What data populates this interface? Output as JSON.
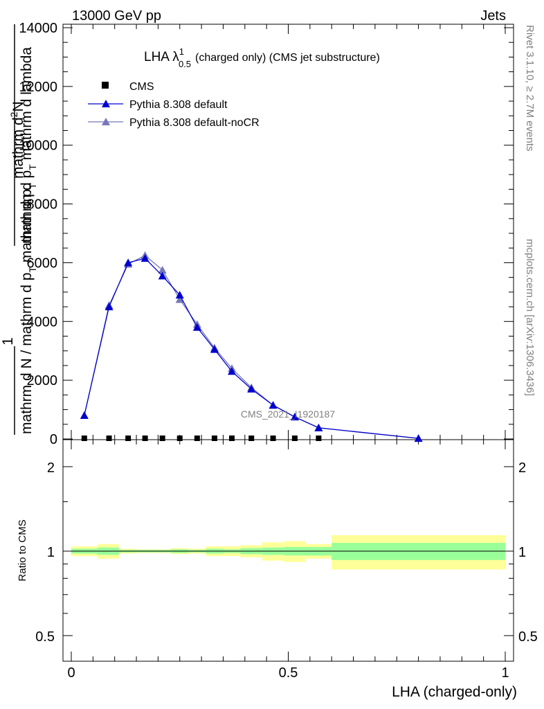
{
  "header": {
    "left": "13000 GeV pp",
    "right": "Jets"
  },
  "title_main": "LHA λ",
  "title_sup": "1",
  "title_sub": "0.5",
  "title_rest": "(charged only) (CMS jet substructure)",
  "side_labels": {
    "rivet": "Rivet 3.1.10, ≥ 2.7M events",
    "mcplots": "mcplots.cern.ch [arXiv:1306.3436]"
  },
  "watermark": "CMS_2021_I1920187",
  "ylabel_main": {
    "num1": "mathrm d",
    "num1_sup": "2",
    "num1_b": "N",
    "den1": "mathrm d p",
    "den1_sub": "T",
    "den1_b": " mathrm d lambda",
    "one": "1",
    "lower": "mathrm d N / mathrm d p",
    "lower_sub": "T",
    "lower_b": " mathrm d p",
    "lower_sub2": "T"
  },
  "ylabel_ratio": "Ratio to CMS",
  "xlabel": "LHA (charged-only)",
  "colors": {
    "pythia_default": "#0000cc",
    "pythia_nocr": "#7777bb",
    "band_stat": "#99ff99",
    "band_total": "#ffff99"
  },
  "chart_data": {
    "type": "line",
    "main_panel": {
      "ylim": [
        0,
        14000
      ],
      "yticks": [
        0,
        2000,
        4000,
        6000,
        8000,
        10000,
        12000,
        14000
      ],
      "ytick_labels": [
        "0",
        "2000",
        "4000",
        "6000",
        "8000",
        "10000",
        "12000",
        "14000"
      ],
      "xlim": [
        0,
        1
      ],
      "legend": {
        "position": "top-left",
        "entries": [
          "CMS",
          "Pythia 8.308 default",
          "Pythia 8.308 default-noCR"
        ]
      },
      "series": [
        {
          "name": "CMS",
          "marker": "square",
          "x": [
            0.03,
            0.087,
            0.131,
            0.17,
            0.21,
            0.25,
            0.29,
            0.33,
            0.37,
            0.415,
            0.465,
            0.515,
            0.57
          ],
          "y": [
            0,
            0,
            0,
            0,
            0,
            0,
            0,
            0,
            0,
            0,
            0,
            0,
            0
          ]
        },
        {
          "name": "Pythia 8.308 default",
          "marker": "triangle",
          "x": [
            0.03,
            0.087,
            0.131,
            0.17,
            0.21,
            0.25,
            0.29,
            0.33,
            0.37,
            0.415,
            0.465,
            0.515,
            0.57,
            0.8
          ],
          "y": [
            800,
            4500,
            6000,
            6150,
            5550,
            4900,
            3800,
            3050,
            2300,
            1700,
            1150,
            750,
            380,
            20
          ]
        },
        {
          "name": "Pythia 8.308 default-noCR",
          "marker": "triangle",
          "x": [
            0.03,
            0.087,
            0.131,
            0.17,
            0.21,
            0.25,
            0.29,
            0.33,
            0.37,
            0.415,
            0.465,
            0.515,
            0.57,
            0.8
          ],
          "y": [
            800,
            4550,
            5950,
            6250,
            5750,
            4750,
            3900,
            3100,
            2400,
            1750,
            1150,
            750,
            380,
            20
          ]
        }
      ]
    },
    "ratio_panel": {
      "ylabel": "Ratio to CMS",
      "xlabel": "LHA (charged-only)",
      "yscale": "log",
      "ylim": [
        0.4,
        2.5
      ],
      "yticks": [
        0.5,
        1,
        2
      ],
      "ytick_labels": [
        "0.5",
        "1",
        "2"
      ],
      "xlim": [
        0,
        1
      ],
      "xticks": [
        0,
        0.5,
        1
      ],
      "xtick_labels": [
        "0",
        "0.5",
        "1"
      ],
      "reference_line": 1,
      "bin_edges": [
        0.0,
        0.06,
        0.11,
        0.15,
        0.19,
        0.23,
        0.27,
        0.31,
        0.35,
        0.39,
        0.44,
        0.49,
        0.54,
        0.6,
        1.0
      ],
      "stat_band_half": [
        0.02,
        0.03,
        0.01,
        0.01,
        0.01,
        0.015,
        0.01,
        0.02,
        0.015,
        0.025,
        0.03,
        0.035,
        0.035,
        0.07
      ],
      "total_band_half": [
        0.04,
        0.06,
        0.02,
        0.015,
        0.015,
        0.025,
        0.02,
        0.04,
        0.04,
        0.05,
        0.075,
        0.085,
        0.06,
        0.14
      ]
    }
  }
}
